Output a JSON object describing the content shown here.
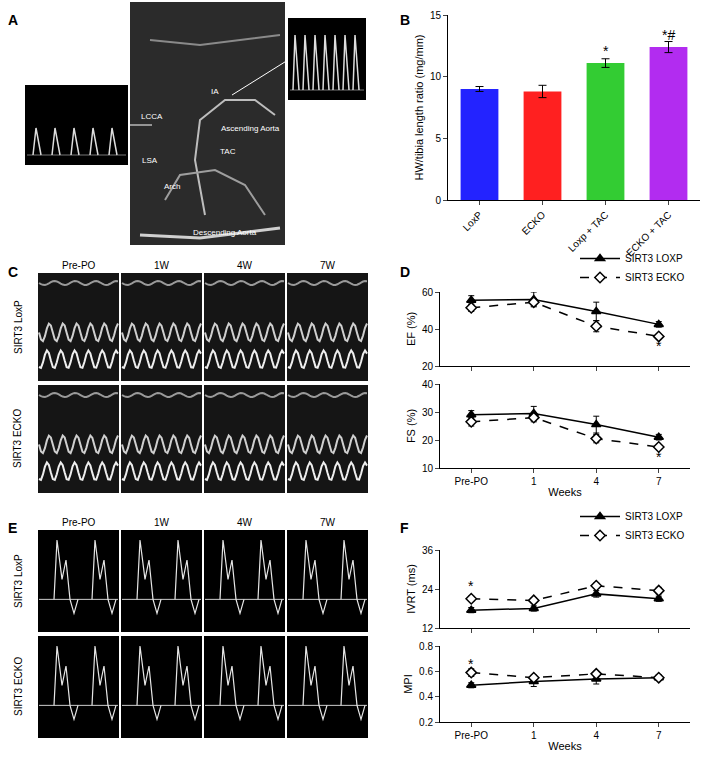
{
  "panels": [
    "A",
    "B",
    "C",
    "D",
    "E",
    "F"
  ],
  "images": {
    "A": {
      "labels": [
        "IA",
        "LCCA",
        "LSA",
        "Ascending Aorta",
        "Arch",
        "TAC",
        "Descending Aorta"
      ]
    },
    "C": {
      "rows": [
        "SIRT3 LoxP",
        "SIRT3 ECKO"
      ],
      "columns": [
        "Pre-PO",
        "1W",
        "4W",
        "7W"
      ]
    },
    "E": {
      "rows": [
        "SIRT3 LoxP",
        "SIRT3 ECKO"
      ],
      "columns": [
        "Pre-PO",
        "1W",
        "4W",
        "7W"
      ]
    }
  },
  "chart_data": [
    {
      "type": "bar",
      "categories": [
        "LoxP",
        "ECKO",
        "Loxp + TAC",
        "ECKO + TAC"
      ],
      "values": [
        9.0,
        8.8,
        11.1,
        12.4
      ],
      "errors": [
        0.2,
        0.5,
        0.35,
        0.45
      ],
      "colors": [
        "#2323ff",
        "#ff2020",
        "#33cc33",
        "#b22cf0"
      ],
      "y_label": "HW/tibia length ratio (mg/mm)",
      "ylim": [
        0,
        15
      ],
      "yticks": [
        0,
        5,
        10,
        15
      ],
      "annotations": [
        {
          "x": "Loxp + TAC",
          "y": 12.1,
          "text": "*"
        },
        {
          "x": "ECKO + TAC",
          "y": 13.4,
          "text": "*#"
        }
      ]
    },
    {
      "type": "line",
      "categories": [
        "Pre-PO",
        "1",
        "4",
        "7"
      ],
      "y_label": "EF (%)",
      "ylim": [
        20,
        60
      ],
      "yticks": [
        20,
        40,
        60
      ],
      "tick_labels": "y",
      "legend": "top right",
      "series": [
        {
          "name": "SIRT3 LOXP",
          "color": "#000000",
          "marker": "triangle-up",
          "line_style": "solid",
          "values": [
            55.5,
            56.0,
            49.5,
            42.5
          ],
          "errors": [
            2.5,
            4,
            5,
            1.5
          ]
        },
        {
          "name": "SIRT3 ECKO",
          "color": "#000000",
          "marker": "diamond-open",
          "line_style": "dashed",
          "values": [
            51.5,
            54.5,
            41.5,
            36.0
          ],
          "errors": [
            2,
            2,
            3,
            1
          ]
        }
      ],
      "annotations": [
        {
          "x": "7",
          "y": 31,
          "text": "*"
        }
      ]
    },
    {
      "type": "line",
      "categories": [
        "Pre-PO",
        "1",
        "4",
        "7"
      ],
      "y_label": "FS (%)",
      "x_label": "Weeks",
      "ylim": [
        10,
        40
      ],
      "yticks": [
        10,
        20,
        30,
        40
      ],
      "series": [
        {
          "name": "SIRT3 LOXP",
          "color": "#000000",
          "marker": "triangle-up",
          "line_style": "solid",
          "values": [
            29,
            29.5,
            25.5,
            21
          ],
          "errors": [
            1.5,
            2.5,
            3,
            1
          ]
        },
        {
          "name": "SIRT3 ECKO",
          "color": "#000000",
          "marker": "diamond-open",
          "line_style": "dashed",
          "values": [
            26.5,
            28,
            20.5,
            17.5
          ],
          "errors": [
            1.5,
            1.5,
            1.5,
            0.5
          ]
        }
      ],
      "annotations": [
        {
          "x": "7",
          "y": 14,
          "text": "*"
        }
      ]
    },
    {
      "type": "line",
      "categories": [
        "Pre-PO",
        "1",
        "4",
        "7"
      ],
      "y_label": "IVRT (ms)",
      "ylim": [
        12,
        36
      ],
      "yticks": [
        12,
        24,
        36
      ],
      "tick_labels": "y",
      "legend": "top right",
      "series": [
        {
          "name": "SIRT3 LOXP",
          "color": "#000000",
          "marker": "triangle-up",
          "line_style": "solid",
          "values": [
            17.5,
            18,
            22.5,
            21
          ],
          "errors": [
            0.8,
            0.8,
            1,
            0.8
          ]
        },
        {
          "name": "SIRT3 ECKO",
          "color": "#000000",
          "marker": "diamond-open",
          "line_style": "dashed",
          "values": [
            21,
            20.5,
            25,
            23.5
          ],
          "errors": [
            0.8,
            0.7,
            0.8,
            1
          ]
        }
      ],
      "annotations": [
        {
          "x": "Pre-PO",
          "y": 25,
          "text": "*"
        }
      ]
    },
    {
      "type": "line",
      "categories": [
        "Pre-PO",
        "1",
        "4",
        "7"
      ],
      "y_label": "MPI",
      "x_label": "Weeks",
      "ylim": [
        0.2,
        0.8
      ],
      "yticks": [
        0.2,
        0.4,
        0.6,
        0.8
      ],
      "series": [
        {
          "name": "SIRT3 LOXP",
          "color": "#000000",
          "marker": "triangle-up",
          "line_style": "solid",
          "values": [
            0.49,
            0.52,
            0.54,
            0.55
          ],
          "errors": [
            0.02,
            0.04,
            0.04,
            0.02
          ]
        },
        {
          "name": "SIRT3 ECKO",
          "color": "#000000",
          "marker": "diamond-open",
          "line_style": "dashed",
          "values": [
            0.59,
            0.55,
            0.58,
            0.55
          ],
          "errors": [
            0.03,
            0.02,
            0.02,
            0.02
          ]
        }
      ],
      "annotations": [
        {
          "x": "Pre-PO",
          "y": 0.66,
          "text": "*"
        }
      ]
    }
  ]
}
